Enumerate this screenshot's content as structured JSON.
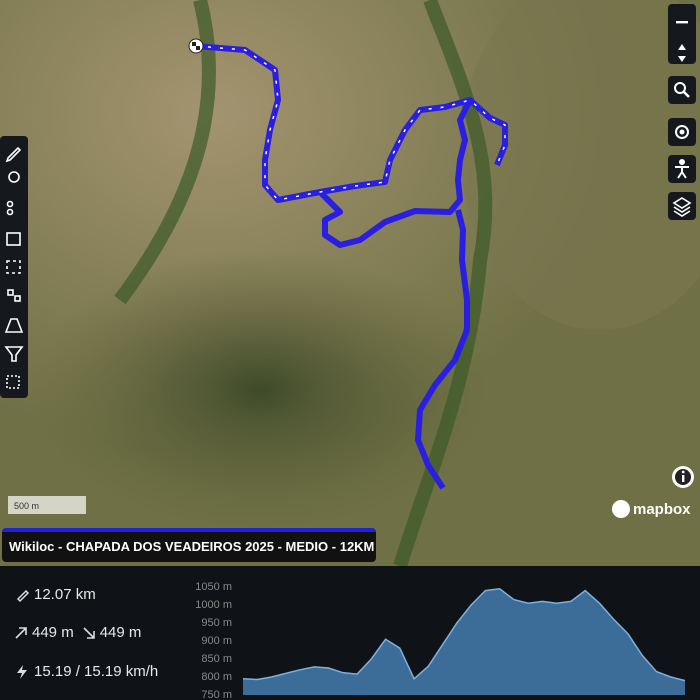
{
  "map": {
    "scale": "500 m",
    "attribution": "mapbox",
    "track_title": "Wikiloc - CHAPADA DOS VEADEIROS 2025 - MEDIO - 12KM"
  },
  "stats": {
    "distance": "12.07 km",
    "ascent": "449 m",
    "descent": "449 m",
    "speed": "15.19 / 15.19 km/h"
  },
  "chart_data": {
    "type": "area",
    "color": "#3b6d98",
    "values": [
      795,
      793,
      800,
      810,
      820,
      828,
      825,
      812,
      808,
      850,
      905,
      880,
      795,
      830,
      890,
      950,
      1000,
      1040,
      1045,
      1015,
      1005,
      1010,
      1005,
      1010,
      1040,
      1005,
      960,
      920,
      860,
      815,
      800,
      790
    ],
    "ylim": [
      750,
      1050
    ],
    "yticks": [
      {
        "value": 750,
        "label": "750 m"
      },
      {
        "value": 800,
        "label": "800 m"
      },
      {
        "value": 850,
        "label": "850 m"
      },
      {
        "value": 900,
        "label": "900 m"
      },
      {
        "value": 950,
        "label": "950 m"
      },
      {
        "value": 1000,
        "label": "1000 m"
      },
      {
        "value": 1050,
        "label": "1050 m"
      }
    ]
  }
}
